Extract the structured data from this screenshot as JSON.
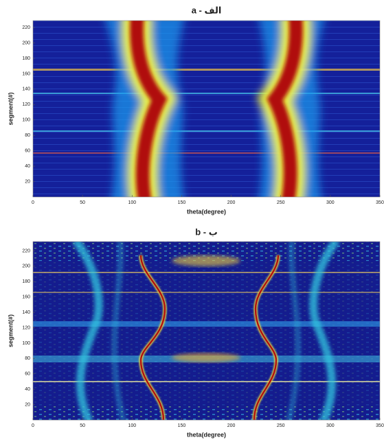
{
  "chart_data": [
    {
      "type": "heatmap",
      "title": "a - الف",
      "x_label": "theta(degree)",
      "y_label": "segment(#)",
      "xlim": [
        0,
        350
      ],
      "xticks": [
        0,
        50,
        100,
        150,
        200,
        250,
        300,
        350
      ],
      "ylim": [
        0,
        229
      ],
      "yticks": [
        20,
        40,
        60,
        80,
        100,
        120,
        140,
        160,
        180,
        200,
        220
      ]
    },
    {
      "type": "heatmap",
      "title": "b - ب",
      "x_label": "theta(degree)",
      "y_label": "segment(#)",
      "xlim": [
        0,
        350
      ],
      "xticks": [
        0,
        50,
        100,
        150,
        200,
        250,
        300,
        350
      ],
      "ylim": [
        0,
        232
      ],
      "yticks": [
        20,
        40,
        60,
        80,
        100,
        120,
        140,
        160,
        180,
        200,
        220
      ]
    }
  ]
}
